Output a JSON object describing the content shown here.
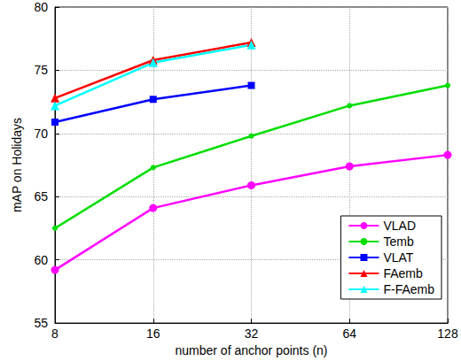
{
  "chart_data": {
    "type": "line",
    "x_label": "number of anchor points (n)",
    "y_label": "mAP on Holidays",
    "x": [
      8,
      16,
      32,
      64,
      128
    ],
    "xlim": [
      8,
      128
    ],
    "xticks": [
      8,
      16,
      32,
      64,
      128
    ],
    "ylim": [
      55,
      80
    ],
    "yticks": [
      55,
      60,
      65,
      70,
      75,
      80
    ],
    "log": "x",
    "grid": true,
    "legend": "lower right",
    "series": [
      {
        "name": "VLAD",
        "color": "#ff00ff",
        "marker": "circle",
        "values": [
          59.2,
          64.1,
          65.9,
          67.4,
          68.3
        ]
      },
      {
        "name": "Temb",
        "color": "#00dd00",
        "marker": "dot",
        "values": [
          62.5,
          67.3,
          69.8,
          72.2,
          73.8
        ]
      },
      {
        "name": "VLAT",
        "color": "#0000ff",
        "marker": "square",
        "values": [
          70.9,
          72.7,
          73.8,
          null,
          null
        ]
      },
      {
        "name": "FAemb",
        "color": "#ff0000",
        "marker": "triangle",
        "values": [
          72.8,
          75.8,
          77.2,
          null,
          null
        ]
      },
      {
        "name": "F-FAemb",
        "color": "#00ffff",
        "marker": "triangle",
        "values": [
          72.2,
          75.6,
          77.0,
          null,
          null
        ]
      }
    ]
  }
}
